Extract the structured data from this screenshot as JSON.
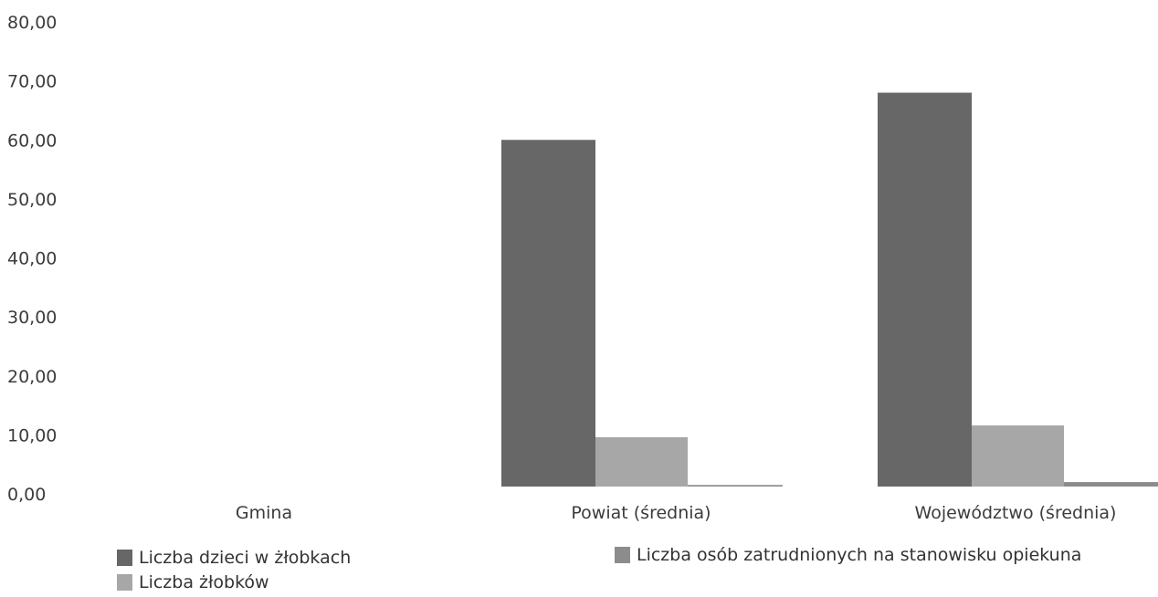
{
  "chart_data": {
    "type": "bar",
    "categories": [
      "Gmina",
      "Powiat (średnia)",
      "Województwo (średnia)"
    ],
    "series": [
      {
        "name": "Liczba dzieci w żłobkach",
        "values": [
          0,
          60.0,
          68.0
        ],
        "color": "#676767"
      },
      {
        "name": "Liczba żłobków",
        "values": [
          0,
          9.6,
          11.6
        ],
        "color": "#a7a7a7"
      },
      {
        "name": "Liczba osób zatrudnionych na stanowisku opiekuna",
        "values": [
          0,
          1.5,
          2.0
        ],
        "color": "#8c8c8c"
      }
    ],
    "ylim": [
      0,
      80
    ],
    "yticks": [
      "0,00",
      "10,00",
      "20,00",
      "30,00",
      "40,00",
      "50,00",
      "60,00",
      "70,00",
      "80,00"
    ],
    "ytick_values": [
      0,
      10,
      20,
      30,
      40,
      50,
      60,
      70,
      80
    ],
    "title": "",
    "xlabel": "",
    "ylabel": "",
    "grid": false,
    "legend_position": "bottom"
  }
}
